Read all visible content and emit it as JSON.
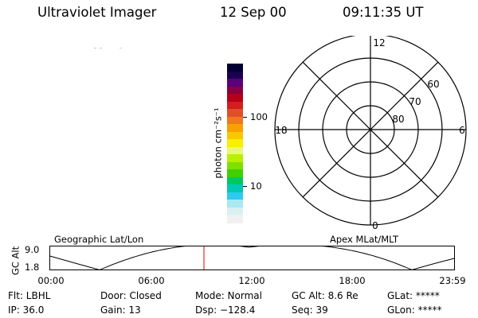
{
  "header": {
    "instrument": "Ultraviolet Imager",
    "date": "12 Sep 00",
    "time": "09:11:35 UT"
  },
  "colorbar": {
    "label": "photon cm⁻²s⁻¹",
    "ticks": [
      "100",
      "10"
    ],
    "colors": [
      "#000033",
      "#1a0050",
      "#5a007a",
      "#8a0040",
      "#b40018",
      "#d21e1e",
      "#e05028",
      "#f07820",
      "#f8a000",
      "#f8c800",
      "#f8f000",
      "#e8f87a",
      "#b8f000",
      "#80e000",
      "#40d000",
      "#00c860",
      "#00c8b4",
      "#30c8f0",
      "#a8e8f0",
      "#d8f0f0",
      "#f0f0f0"
    ]
  },
  "polar_plot": {
    "mlt_labels": [
      "12",
      "18",
      "6",
      "0"
    ],
    "lat_labels": [
      "60",
      "70",
      "80"
    ]
  },
  "timeline": {
    "left_label": "Geographic Lat/Lon",
    "right_label": "Apex  MLat/MLT",
    "y_axis_title": "GC Alt",
    "y_ticks": [
      "9.0",
      "1.8"
    ],
    "x_ticks": [
      "00:00",
      "06:00",
      "12:00",
      "18:00",
      "23:59"
    ],
    "current_time_marker_color": "#e00000"
  },
  "status": {
    "row1": [
      {
        "text": "Flt: LBHL"
      },
      {
        "text": "Door: Closed"
      },
      {
        "text": "Mode: Normal"
      },
      {
        "text": "GC Alt: 8.6 Re"
      },
      {
        "text": "GLat: *****"
      }
    ],
    "row2": [
      {
        "text": "IP: 36.0"
      },
      {
        "text": "Gain: 13"
      },
      {
        "text": "Dsp: −128.4"
      },
      {
        "text": "Seq: 39"
      },
      {
        "text": "GLon: *****"
      }
    ]
  }
}
